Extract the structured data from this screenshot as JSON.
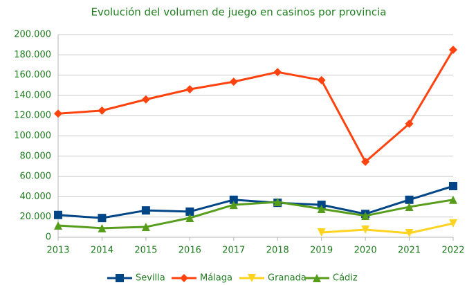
{
  "chart_data": {
    "type": "line",
    "title": "Evolución del volumen de juego en casinos por provincia",
    "categories": [
      "2013",
      "2014",
      "2015",
      "2016",
      "2017",
      "2018",
      "2019",
      "2020",
      "2021",
      "2022"
    ],
    "series": [
      {
        "name": "Sevilla",
        "color": "#004586",
        "marker": "square",
        "values": [
          22000,
          19000,
          26500,
          25300,
          37000,
          34000,
          32000,
          23000,
          37000,
          50500
        ]
      },
      {
        "name": "Málaga",
        "color": "#ff420e",
        "marker": "diamond",
        "values": [
          122000,
          125000,
          136000,
          146000,
          153500,
          163000,
          155000,
          74500,
          112000,
          185000
        ]
      },
      {
        "name": "Granada",
        "color": "#ffd320",
        "marker": "triangle-down",
        "values": [
          null,
          null,
          null,
          null,
          null,
          null,
          4800,
          7500,
          4100,
          13700
        ]
      },
      {
        "name": "Cádiz",
        "color": "#579d1c",
        "marker": "triangle-up",
        "values": [
          11600,
          9000,
          10200,
          19100,
          32000,
          34800,
          28000,
          21200,
          30000,
          37000
        ]
      }
    ],
    "ylim": [
      0,
      200000
    ],
    "yticks": [
      0,
      {
        "value": 20000,
        "label": "20.000"
      },
      {
        "value": 40000,
        "label": "40.000"
      },
      {
        "value": 60000,
        "label": "60.000"
      },
      {
        "value": 80000,
        "label": "80.000"
      },
      {
        "value": 100000,
        "label": "100.000"
      },
      {
        "value": 120000,
        "label": "120.000"
      },
      {
        "value": 140000,
        "label": "140.000"
      },
      {
        "value": 160000,
        "label": "160.000"
      },
      {
        "value": 180000,
        "label": "180.000"
      },
      {
        "value": 200000,
        "label": "200.000"
      }
    ],
    "grid": true,
    "legend": "bottom"
  }
}
